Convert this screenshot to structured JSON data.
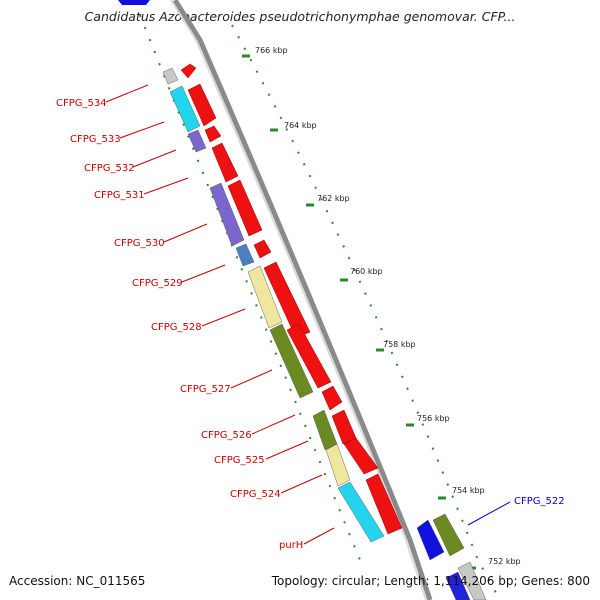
{
  "title": "Candidatus Azobacteroides pseudotrichonymphae genomovar. CFP...",
  "footer": {
    "accession_label": "Accession:",
    "accession": "NC_011565",
    "topology_label": "Topology:",
    "topology": "circular",
    "length_label": "Length:",
    "length": "1,114,206 bp",
    "genes_label": "Genes:",
    "genes": "800"
  },
  "colors": {
    "backbone": "#8a8a8a",
    "forward_gene": "#ee1111",
    "label_red": "#cc0000",
    "label_blue": "#0000cc",
    "tick_green": "#2a8a2a",
    "cyan": "#22d4ee",
    "purple": "#7a66cc",
    "olive": "#6b8a22",
    "khaki": "#efe7a0",
    "blue": "#1111dd",
    "gray": "#c8c8c8",
    "steel": "#4a80c0"
  },
  "scale_ticks": [
    "766 kbp",
    "764 kbp",
    "762 kbp",
    "760 kbp",
    "758 kbp",
    "756 kbp",
    "754 kbp",
    "752 kbp"
  ],
  "gene_labels": [
    {
      "name": "CFPG_534",
      "color": "red"
    },
    {
      "name": "CFPG_533",
      "color": "red"
    },
    {
      "name": "CFPG_532",
      "color": "red"
    },
    {
      "name": "CFPG_531",
      "color": "red"
    },
    {
      "name": "CFPG_530",
      "color": "red"
    },
    {
      "name": "CFPG_529",
      "color": "red"
    },
    {
      "name": "CFPG_528",
      "color": "red"
    },
    {
      "name": "CFPG_527",
      "color": "red"
    },
    {
      "name": "CFPG_526",
      "color": "red"
    },
    {
      "name": "CFPG_525",
      "color": "red"
    },
    {
      "name": "CFPG_524",
      "color": "red"
    },
    {
      "name": "purH",
      "color": "red"
    },
    {
      "name": "CFPG_522",
      "color": "blue"
    }
  ]
}
